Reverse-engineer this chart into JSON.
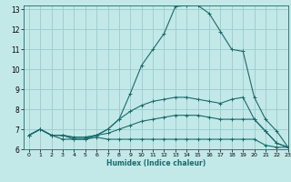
{
  "xlabel": "Humidex (Indice chaleur)",
  "background_color": "#c3e8e8",
  "grid_color": "#99cccc",
  "line_color": "#1a6b6b",
  "xlim": [
    -0.5,
    23
  ],
  "ylim": [
    6,
    13.2
  ],
  "xticks": [
    0,
    1,
    2,
    3,
    4,
    5,
    6,
    7,
    8,
    9,
    10,
    11,
    12,
    13,
    14,
    15,
    16,
    17,
    18,
    19,
    20,
    21,
    22,
    23
  ],
  "yticks": [
    6,
    7,
    8,
    9,
    10,
    11,
    12,
    13
  ],
  "curves": [
    {
      "x": [
        0,
        1,
        2,
        3,
        4,
        5,
        6,
        7,
        8,
        9,
        10,
        11,
        12,
        13,
        14,
        15,
        16,
        17,
        18,
        19,
        20,
        21,
        22,
        23
      ],
      "y": [
        6.7,
        7.0,
        6.7,
        6.5,
        6.5,
        6.5,
        6.6,
        6.5,
        6.5,
        6.5,
        6.5,
        6.5,
        6.5,
        6.5,
        6.5,
        6.5,
        6.5,
        6.5,
        6.5,
        6.5,
        6.5,
        6.2,
        6.1,
        6.1
      ]
    },
    {
      "x": [
        0,
        1,
        2,
        3,
        4,
        5,
        6,
        7,
        8,
        9,
        10,
        11,
        12,
        13,
        14,
        15,
        16,
        17,
        18,
        19,
        20,
        21,
        22,
        23
      ],
      "y": [
        6.7,
        7.0,
        6.7,
        6.7,
        6.6,
        6.6,
        6.7,
        6.8,
        7.0,
        7.2,
        7.4,
        7.5,
        7.6,
        7.7,
        7.7,
        7.7,
        7.6,
        7.5,
        7.5,
        7.5,
        7.5,
        6.9,
        6.3,
        6.1
      ]
    },
    {
      "x": [
        0,
        1,
        2,
        3,
        4,
        5,
        6,
        7,
        8,
        9,
        10,
        11,
        12,
        13,
        14,
        15,
        16,
        17,
        18,
        19,
        20,
        21,
        22,
        23
      ],
      "y": [
        6.7,
        7.0,
        6.7,
        6.7,
        6.6,
        6.6,
        6.7,
        7.0,
        7.5,
        7.9,
        8.2,
        8.4,
        8.5,
        8.6,
        8.6,
        8.5,
        8.4,
        8.3,
        8.5,
        8.6,
        7.5,
        6.9,
        6.3,
        6.1
      ]
    },
    {
      "x": [
        0,
        1,
        2,
        3,
        4,
        5,
        6,
        7,
        8,
        9,
        10,
        11,
        12,
        13,
        14,
        15,
        16,
        17,
        18,
        19,
        20,
        21,
        22,
        23
      ],
      "y": [
        6.7,
        7.0,
        6.7,
        6.7,
        6.5,
        6.5,
        6.7,
        7.0,
        7.5,
        8.8,
        10.2,
        11.0,
        11.8,
        13.15,
        13.2,
        13.2,
        12.8,
        11.9,
        11.0,
        10.9,
        8.6,
        7.5,
        6.9,
        6.1
      ]
    }
  ]
}
